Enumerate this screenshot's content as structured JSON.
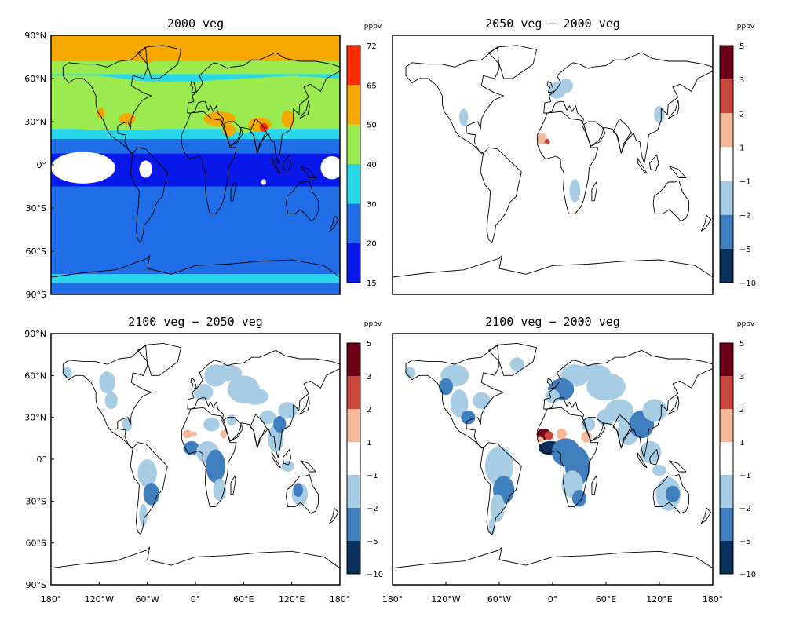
{
  "panels": [
    {
      "title": "2000 veg",
      "unit": "ppbv",
      "colorbar": {
        "labels": [
          "15",
          "20",
          "30",
          "40",
          "50",
          "65",
          "72"
        ],
        "colors": [
          "#0818e8",
          "#1f6ee8",
          "#28d8e8",
          "#9bea50",
          "#f5a800",
          "#ff2a00"
        ]
      }
    },
    {
      "title": "2050 veg − 2000 veg",
      "unit": "ppbv",
      "colorbar": {
        "labels": [
          "5",
          "3",
          "2",
          "1",
          "−1",
          "−2",
          "−5",
          "−10"
        ],
        "colors": [
          "#6b0016",
          "#c8463c",
          "#f4b89b",
          "#ffffff",
          "#a7cce3",
          "#3f7fbe",
          "#0b305c"
        ]
      }
    },
    {
      "title": "2100 veg − 2050 veg",
      "unit": "ppbv",
      "colorbar": {
        "labels": [
          "5",
          "3",
          "2",
          "1",
          "−1",
          "−2",
          "−5",
          "−10"
        ],
        "colors": [
          "#6b0016",
          "#c8463c",
          "#f4b89b",
          "#ffffff",
          "#a7cce3",
          "#3f7fbe",
          "#0b305c"
        ]
      }
    },
    {
      "title": "2100 veg − 2000 veg",
      "unit": "ppbv",
      "colorbar": {
        "labels": [
          "5",
          "3",
          "2",
          "1",
          "−1",
          "−2",
          "−5",
          "−10"
        ],
        "colors": [
          "#6b0016",
          "#c8463c",
          "#f4b89b",
          "#ffffff",
          "#a7cce3",
          "#3f7fbe",
          "#0b305c"
        ]
      }
    }
  ],
  "lat_ticks": [
    "90°N",
    "60°N",
    "30°N",
    "0°",
    "30°S",
    "60°S",
    "90°S"
  ],
  "lon_ticks": [
    "180°",
    "120°W",
    "60°W",
    "0°",
    "60°E",
    "120°E",
    "180°"
  ]
}
